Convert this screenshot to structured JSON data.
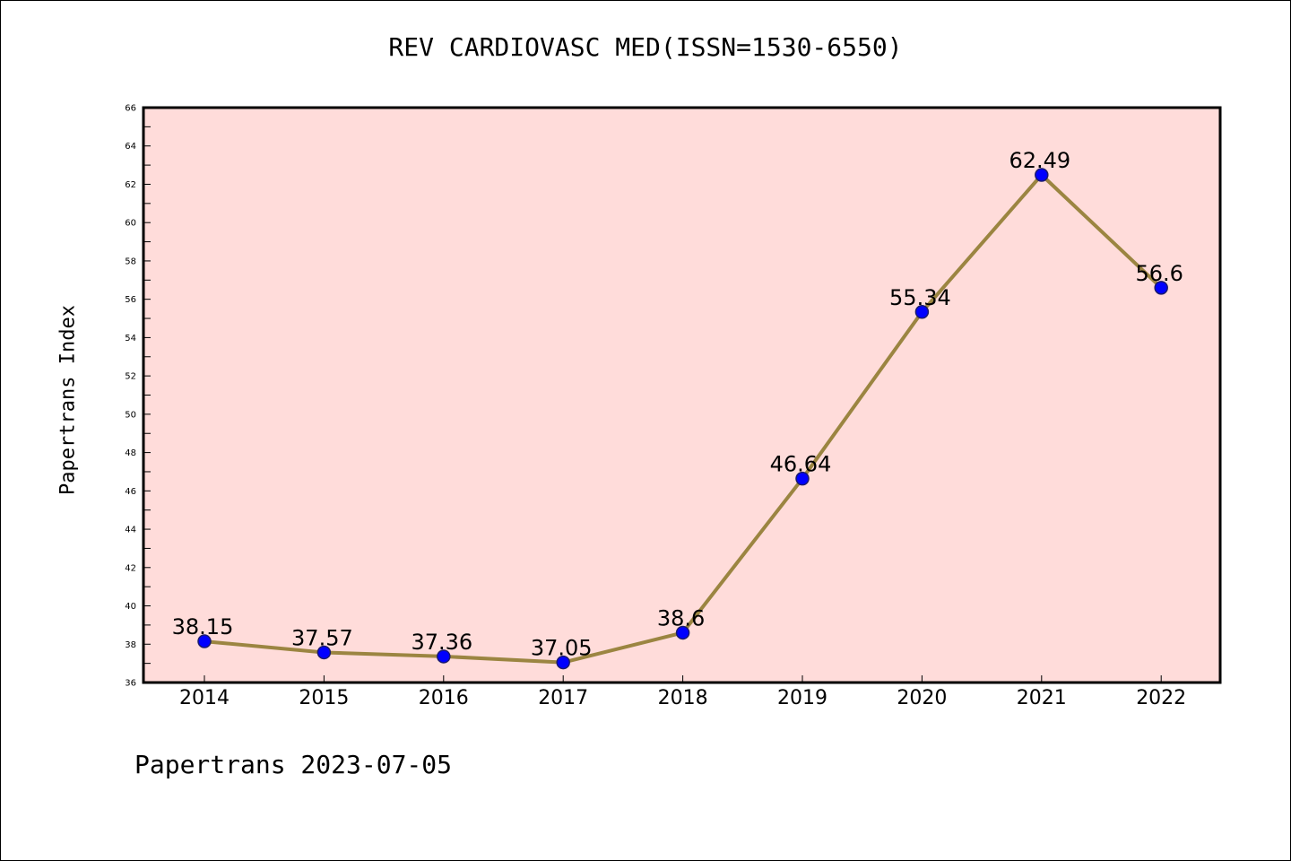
{
  "footer_text": "Papertrans 2023-07-05",
  "colors": {
    "plot_background": "#ffdcda",
    "line": "#9b8541",
    "marker": "#0000ff",
    "marker_edge": "#1a1a6e"
  },
  "chart_data": {
    "type": "line",
    "title": "REV CARDIOVASC MED(ISSN=1530-6550)",
    "xlabel": "",
    "ylabel": "Papertrans Index",
    "categories": [
      "2014",
      "2015",
      "2016",
      "2017",
      "2018",
      "2019",
      "2020",
      "2021",
      "2022"
    ],
    "series": [
      {
        "values": [
          38.15,
          37.57,
          37.36,
          37.05,
          38.6,
          46.64,
          55.34,
          62.49,
          56.6
        ],
        "labels": [
          "38.15",
          "37.57",
          "37.36",
          "37.05",
          "38.6",
          "46.64",
          "55.34",
          "62.49",
          "56.6"
        ]
      }
    ],
    "ylim": [
      36,
      66
    ],
    "yticks": [
      36,
      38,
      40,
      42,
      44,
      46,
      48,
      50,
      52,
      54,
      56,
      58,
      60,
      62,
      64,
      66
    ],
    "grid": false,
    "legend": "none"
  }
}
